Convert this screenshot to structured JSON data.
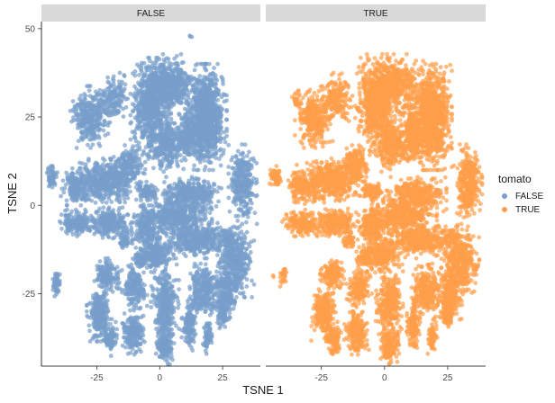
{
  "chart_data": {
    "type": "scatter",
    "facet_by": "tomato",
    "facets": [
      "FALSE",
      "TRUE"
    ],
    "xlabel": "TSNE 1",
    "ylabel": "TSNE 2",
    "xlim": [
      -47,
      40
    ],
    "ylim": [
      -45.5,
      52
    ],
    "x_ticks": [
      -25,
      0,
      25
    ],
    "y_ticks": [
      50,
      25,
      0,
      -25
    ],
    "x_tick_labels": [
      "-25",
      "0",
      "25"
    ],
    "y_tick_labels": [
      "50",
      "25",
      "0",
      "-25"
    ],
    "grid": false,
    "legend": {
      "title": "tomato",
      "position": "right",
      "entries": [
        {
          "label": "FALSE",
          "color": "#779ECB"
        },
        {
          "label": "TRUE",
          "color": "#FF9E4A"
        }
      ]
    },
    "series": [
      {
        "name": "FALSE",
        "color": "#779ECB",
        "clusters": [
          {
            "x": 18.5,
            "y": 25,
            "rx": 6.5,
            "ry": 12,
            "n": 1000
          },
          {
            "x": -3.5,
            "y": 28,
            "rx": 6.5,
            "ry": 11,
            "n": 640
          },
          {
            "x": 4,
            "y": 34,
            "rx": 9,
            "ry": 7,
            "n": 440
          },
          {
            "x": 3,
            "y": 17,
            "rx": 6,
            "ry": 6,
            "n": 300
          },
          {
            "x": 11,
            "y": 20,
            "rx": 3.5,
            "ry": 6,
            "n": 220
          },
          {
            "x": -28,
            "y": 25,
            "rx": 6,
            "ry": 7,
            "n": 320
          },
          {
            "x": -19,
            "y": 30,
            "rx": 5,
            "ry": 6,
            "n": 160
          },
          {
            "x": -21,
            "y": 7,
            "rx": 11,
            "ry": 5,
            "n": 500
          },
          {
            "x": -12,
            "y": 12,
            "rx": 5,
            "ry": 4,
            "n": 160
          },
          {
            "x": -33,
            "y": 5,
            "rx": 5,
            "ry": 4,
            "n": 160
          },
          {
            "x": -43,
            "y": 8,
            "rx": 2,
            "ry": 2.5,
            "n": 60
          },
          {
            "x": -33,
            "y": -5,
            "rx": 6,
            "ry": 3,
            "n": 180
          },
          {
            "x": -20,
            "y": -5,
            "rx": 7,
            "ry": 3.5,
            "n": 250
          },
          {
            "x": -5,
            "y": 4,
            "rx": 3.5,
            "ry": 2.2,
            "n": 100
          },
          {
            "x": 33,
            "y": 6,
            "rx": 4.5,
            "ry": 9,
            "n": 320
          },
          {
            "x": 12,
            "y": 3,
            "rx": 10,
            "ry": 4,
            "n": 360
          },
          {
            "x": 7,
            "y": -3,
            "rx": 11,
            "ry": 4,
            "n": 380
          },
          {
            "x": 14,
            "y": -10,
            "rx": 12,
            "ry": 4,
            "n": 420
          },
          {
            "x": -5,
            "y": -6,
            "rx": 5,
            "ry": 5,
            "n": 240
          },
          {
            "x": -2,
            "y": -14,
            "rx": 6,
            "ry": 4,
            "n": 240
          },
          {
            "x": 30,
            "y": -16,
            "rx": 6,
            "ry": 8,
            "n": 380
          },
          {
            "x": 17,
            "y": -24,
            "rx": 5,
            "ry": 6,
            "n": 260
          },
          {
            "x": 26,
            "y": -25,
            "rx": 4,
            "ry": 6,
            "n": 200
          },
          {
            "x": -21,
            "y": -20,
            "rx": 4,
            "ry": 4,
            "n": 160
          },
          {
            "x": -24,
            "y": -31,
            "rx": 4,
            "ry": 6,
            "n": 260
          },
          {
            "x": -20,
            "y": -38,
            "rx": 2.5,
            "ry": 4,
            "n": 100
          },
          {
            "x": -10,
            "y": -23,
            "rx": 4,
            "ry": 5,
            "n": 180
          },
          {
            "x": -11,
            "y": -36,
            "rx": 4,
            "ry": 5,
            "n": 200
          },
          {
            "x": 2,
            "y": -28,
            "rx": 4.5,
            "ry": 9,
            "n": 340
          },
          {
            "x": 2,
            "y": -40,
            "rx": 3,
            "ry": 4,
            "n": 150
          },
          {
            "x": 11.5,
            "y": -34,
            "rx": 2.2,
            "ry": 6,
            "n": 140
          },
          {
            "x": 19,
            "y": -37,
            "rx": 1.5,
            "ry": 4,
            "n": 70
          },
          {
            "x": 25,
            "y": -31,
            "rx": 2.2,
            "ry": 3,
            "n": 80
          },
          {
            "x": 27,
            "y": -9,
            "rx": 2.5,
            "ry": 2.5,
            "n": 60
          },
          {
            "x": -41,
            "y": -22,
            "rx": 1.5,
            "ry": 3,
            "n": 50
          },
          {
            "x": -8,
            "y": -15,
            "rx": 2.5,
            "ry": 2.5,
            "n": 60
          },
          {
            "x": -14,
            "y": -10,
            "rx": 2.5,
            "ry": 2,
            "n": 50
          },
          {
            "x": 12,
            "y": 48,
            "rx": 0.6,
            "ry": 0.6,
            "n": 3
          }
        ]
      },
      {
        "name": "TRUE",
        "color": "#FF9E4A",
        "clusters": [
          {
            "x": 18.5,
            "y": 25,
            "rx": 6.5,
            "ry": 12,
            "n": 1000
          },
          {
            "x": -3.5,
            "y": 28,
            "rx": 6.5,
            "ry": 11,
            "n": 640
          },
          {
            "x": 4,
            "y": 34,
            "rx": 9,
            "ry": 7,
            "n": 440
          },
          {
            "x": 3,
            "y": 17,
            "rx": 6,
            "ry": 6,
            "n": 300
          },
          {
            "x": 11,
            "y": 20,
            "rx": 3.5,
            "ry": 6,
            "n": 220
          },
          {
            "x": -28,
            "y": 25,
            "rx": 6,
            "ry": 7,
            "n": 320
          },
          {
            "x": -19,
            "y": 30,
            "rx": 5,
            "ry": 6,
            "n": 160
          },
          {
            "x": -21,
            "y": 7,
            "rx": 11,
            "ry": 5,
            "n": 500
          },
          {
            "x": -12,
            "y": 12,
            "rx": 5,
            "ry": 4,
            "n": 160
          },
          {
            "x": -33,
            "y": 5,
            "rx": 5,
            "ry": 4,
            "n": 160
          },
          {
            "x": -43,
            "y": 8,
            "rx": 2,
            "ry": 2.5,
            "n": 60
          },
          {
            "x": -33,
            "y": -5,
            "rx": 6,
            "ry": 3,
            "n": 180
          },
          {
            "x": -20,
            "y": -5,
            "rx": 7,
            "ry": 3.5,
            "n": 250
          },
          {
            "x": -5,
            "y": 4,
            "rx": 3.5,
            "ry": 2.2,
            "n": 100
          },
          {
            "x": 33,
            "y": 6,
            "rx": 4.5,
            "ry": 9,
            "n": 320
          },
          {
            "x": 12,
            "y": 3,
            "rx": 10,
            "ry": 4,
            "n": 360
          },
          {
            "x": 7,
            "y": -3,
            "rx": 11,
            "ry": 4,
            "n": 380
          },
          {
            "x": 14,
            "y": -10,
            "rx": 12,
            "ry": 4,
            "n": 420
          },
          {
            "x": -5,
            "y": -6,
            "rx": 5,
            "ry": 5,
            "n": 240
          },
          {
            "x": -2,
            "y": -14,
            "rx": 6,
            "ry": 4,
            "n": 240
          },
          {
            "x": 30,
            "y": -16,
            "rx": 6,
            "ry": 8,
            "n": 380
          },
          {
            "x": 17,
            "y": -24,
            "rx": 5,
            "ry": 6,
            "n": 260
          },
          {
            "x": 26,
            "y": -25,
            "rx": 4,
            "ry": 6,
            "n": 200
          },
          {
            "x": -21,
            "y": -20,
            "rx": 4,
            "ry": 4,
            "n": 160
          },
          {
            "x": -24,
            "y": -31,
            "rx": 4,
            "ry": 6,
            "n": 260
          },
          {
            "x": -20,
            "y": -38,
            "rx": 2.5,
            "ry": 4,
            "n": 100
          },
          {
            "x": -10,
            "y": -23,
            "rx": 4,
            "ry": 5,
            "n": 180
          },
          {
            "x": -11,
            "y": -36,
            "rx": 4,
            "ry": 5,
            "n": 200
          },
          {
            "x": 2,
            "y": -28,
            "rx": 4.5,
            "ry": 9,
            "n": 340
          },
          {
            "x": 2,
            "y": -40,
            "rx": 3,
            "ry": 4,
            "n": 150
          },
          {
            "x": 11.5,
            "y": -34,
            "rx": 2.2,
            "ry": 6,
            "n": 140
          },
          {
            "x": 19,
            "y": -37,
            "rx": 1.5,
            "ry": 4,
            "n": 70
          },
          {
            "x": 25,
            "y": -31,
            "rx": 2.2,
            "ry": 3,
            "n": 80
          },
          {
            "x": 27,
            "y": -9,
            "rx": 2.5,
            "ry": 2.5,
            "n": 60
          },
          {
            "x": -8,
            "y": -15,
            "rx": 2.5,
            "ry": 2.5,
            "n": 60
          },
          {
            "x": -14,
            "y": -10,
            "rx": 2.5,
            "ry": 2,
            "n": 50
          },
          {
            "x": -35,
            "y": 30,
            "rx": 1.5,
            "ry": 2,
            "n": 20
          },
          {
            "x": -40,
            "y": -20,
            "rx": 1.5,
            "ry": 3,
            "n": 30
          },
          {
            "x": -44,
            "y": -20,
            "rx": 0.6,
            "ry": 0.6,
            "n": 2
          }
        ]
      }
    ]
  }
}
